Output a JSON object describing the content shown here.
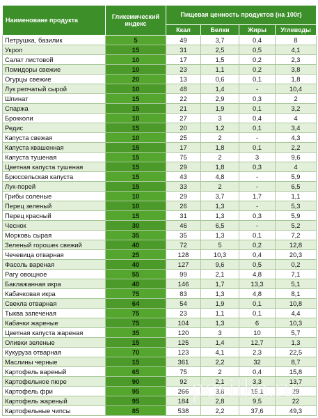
{
  "header": {
    "product": "Наименоване продукта",
    "gi": "Гликемический индекс",
    "nutrition": "Пищевая ценность продуктов (на 100г)",
    "kcal": "Ккал",
    "protein": "Белки",
    "fat": "Жиры",
    "carbs": "Углеводы"
  },
  "rows": [
    {
      "name": "Петрушка, базилик",
      "gi": "5",
      "kcal": "49",
      "protein": "3,7",
      "fat": "0,4",
      "carbs": "8"
    },
    {
      "name": "Укроп",
      "gi": "15",
      "kcal": "31",
      "protein": "2,5",
      "fat": "0,5",
      "carbs": "4,1"
    },
    {
      "name": "Салат листовой",
      "gi": "10",
      "kcal": "17",
      "protein": "1,5",
      "fat": "0,2",
      "carbs": "2,3"
    },
    {
      "name": "Помидоры свежие",
      "gi": "10",
      "kcal": "23",
      "protein": "1,1",
      "fat": "0,2",
      "carbs": "3,8"
    },
    {
      "name": "Огурцы свежие",
      "gi": "20",
      "kcal": "13",
      "protein": "0,6",
      "fat": "0,1",
      "carbs": "1,8"
    },
    {
      "name": "Лук репчатый сырой",
      "gi": "10",
      "kcal": "48",
      "protein": "1,4",
      "fat": "-",
      "carbs": "10,4"
    },
    {
      "name": "Шпинат",
      "gi": "15",
      "kcal": "22",
      "protein": "2,9",
      "fat": "0,3",
      "carbs": "2"
    },
    {
      "name": "Спаржа",
      "gi": "15",
      "kcal": "21",
      "protein": "1,9",
      "fat": "0,1",
      "carbs": "3,2"
    },
    {
      "name": "Брокколи",
      "gi": "10",
      "kcal": "27",
      "protein": "3",
      "fat": "0,4",
      "carbs": "4"
    },
    {
      "name": "Редис",
      "gi": "15",
      "kcal": "20",
      "protein": "1,2",
      "fat": "0,1",
      "carbs": "3,4"
    },
    {
      "name": "Капуста свежая",
      "gi": "10",
      "kcal": "25",
      "protein": "2",
      "fat": "-",
      "carbs": "4,3"
    },
    {
      "name": "Капуста квашенная",
      "gi": "15",
      "kcal": "17",
      "protein": "1,8",
      "fat": "0,1",
      "carbs": "2,2"
    },
    {
      "name": "Капуста тушеная",
      "gi": "15",
      "kcal": "75",
      "protein": "2",
      "fat": "3",
      "carbs": "9,6"
    },
    {
      "name": "Цветная капуста тушеная",
      "gi": "15",
      "kcal": "29",
      "protein": "1,8",
      "fat": "0,3",
      "carbs": "4"
    },
    {
      "name": "Брюссельская капуста",
      "gi": "15",
      "kcal": "43",
      "protein": "4,8",
      "fat": "-",
      "carbs": "5,9"
    },
    {
      "name": "Лук-порей",
      "gi": "15",
      "kcal": "33",
      "protein": "2",
      "fat": "-",
      "carbs": "6,5"
    },
    {
      "name": "Грибы соленые",
      "gi": "10",
      "kcal": "29",
      "protein": "3,7",
      "fat": "1,7",
      "carbs": "1,1"
    },
    {
      "name": "Перец зеленый",
      "gi": "10",
      "kcal": "26",
      "protein": "1,3",
      "fat": "-",
      "carbs": "5,3"
    },
    {
      "name": "Перец красный",
      "gi": "15",
      "kcal": "31",
      "protein": "1,3",
      "fat": "0,3",
      "carbs": "5,9"
    },
    {
      "name": "Чеснок",
      "gi": "30",
      "kcal": "46",
      "protein": "6,5",
      "fat": "-",
      "carbs": "5,2"
    },
    {
      "name": "Морковь сырая",
      "gi": "35",
      "kcal": "35",
      "protein": "1,3",
      "fat": "0,1",
      "carbs": "7,2"
    },
    {
      "name": "Зеленый горошек свежий",
      "gi": "40",
      "kcal": "72",
      "protein": "5",
      "fat": "0,2",
      "carbs": "12,8"
    },
    {
      "name": "Чечевица отварная",
      "gi": "25",
      "kcal": "128",
      "protein": "10,3",
      "fat": "0,4",
      "carbs": "20,3"
    },
    {
      "name": "Фасоль вареная",
      "gi": "40",
      "kcal": "127",
      "protein": "9,6",
      "fat": "0,5",
      "carbs": "0,2"
    },
    {
      "name": "Рагу овощное",
      "gi": "55",
      "kcal": "99",
      "protein": "2,1",
      "fat": "4,8",
      "carbs": "7,1"
    },
    {
      "name": "Баклажанная икра",
      "gi": "40",
      "kcal": "146",
      "protein": "1,7",
      "fat": "13,3",
      "carbs": "5,1"
    },
    {
      "name": "Кабачковая икра",
      "gi": "75",
      "kcal": "83",
      "protein": "1,3",
      "fat": "4,8",
      "carbs": "8,1"
    },
    {
      "name": "Свекла отварная",
      "gi": "64",
      "kcal": "54",
      "protein": "1,9",
      "fat": "0,1",
      "carbs": "10,8"
    },
    {
      "name": "Тыква запеченая",
      "gi": "75",
      "kcal": "23",
      "protein": "1,1",
      "fat": "0,1",
      "carbs": "4,4"
    },
    {
      "name": "Кабачки жареные",
      "gi": "75",
      "kcal": "104",
      "protein": "1,3",
      "fat": "6",
      "carbs": "10,3"
    },
    {
      "name": "Цветная капуста жареная",
      "gi": "35",
      "kcal": "120",
      "protein": "3",
      "fat": "10",
      "carbs": "5,7"
    },
    {
      "name": "Оливки зеленые",
      "gi": "15",
      "kcal": "125",
      "protein": "1,4",
      "fat": "12,7",
      "carbs": "1,3"
    },
    {
      "name": "Кукуруза отварная",
      "gi": "70",
      "kcal": "123",
      "protein": "4,1",
      "fat": "2,3",
      "carbs": "22,5"
    },
    {
      "name": "Маслины черные",
      "gi": "15",
      "kcal": "361",
      "protein": "2,2",
      "fat": "32",
      "carbs": "8,7"
    },
    {
      "name": "Картофель вареный",
      "gi": "65",
      "kcal": "75",
      "protein": "2",
      "fat": "0,4",
      "carbs": "15,8"
    },
    {
      "name": "Картофельное пюре",
      "gi": "90",
      "kcal": "92",
      "protein": "2,1",
      "fat": "3,3",
      "carbs": "13,7"
    },
    {
      "name": "Картофель фри",
      "gi": "95",
      "kcal": "266",
      "protein": "3,8",
      "fat": "15,1",
      "carbs": "29"
    },
    {
      "name": "Картофель жареный",
      "gi": "95",
      "kcal": "184",
      "protein": "2,8",
      "fat": "9,5",
      "carbs": "22"
    },
    {
      "name": "Картофельные чипсы",
      "gi": "85",
      "kcal": "538",
      "protein": "2,2",
      "fat": "37,6",
      "carbs": "49,3"
    }
  ],
  "watermark": "posilka.ru",
  "colors": {
    "header": "#3d8f2a",
    "gi_cell": "#55a62f",
    "row_alt": "#e3f0d9"
  }
}
